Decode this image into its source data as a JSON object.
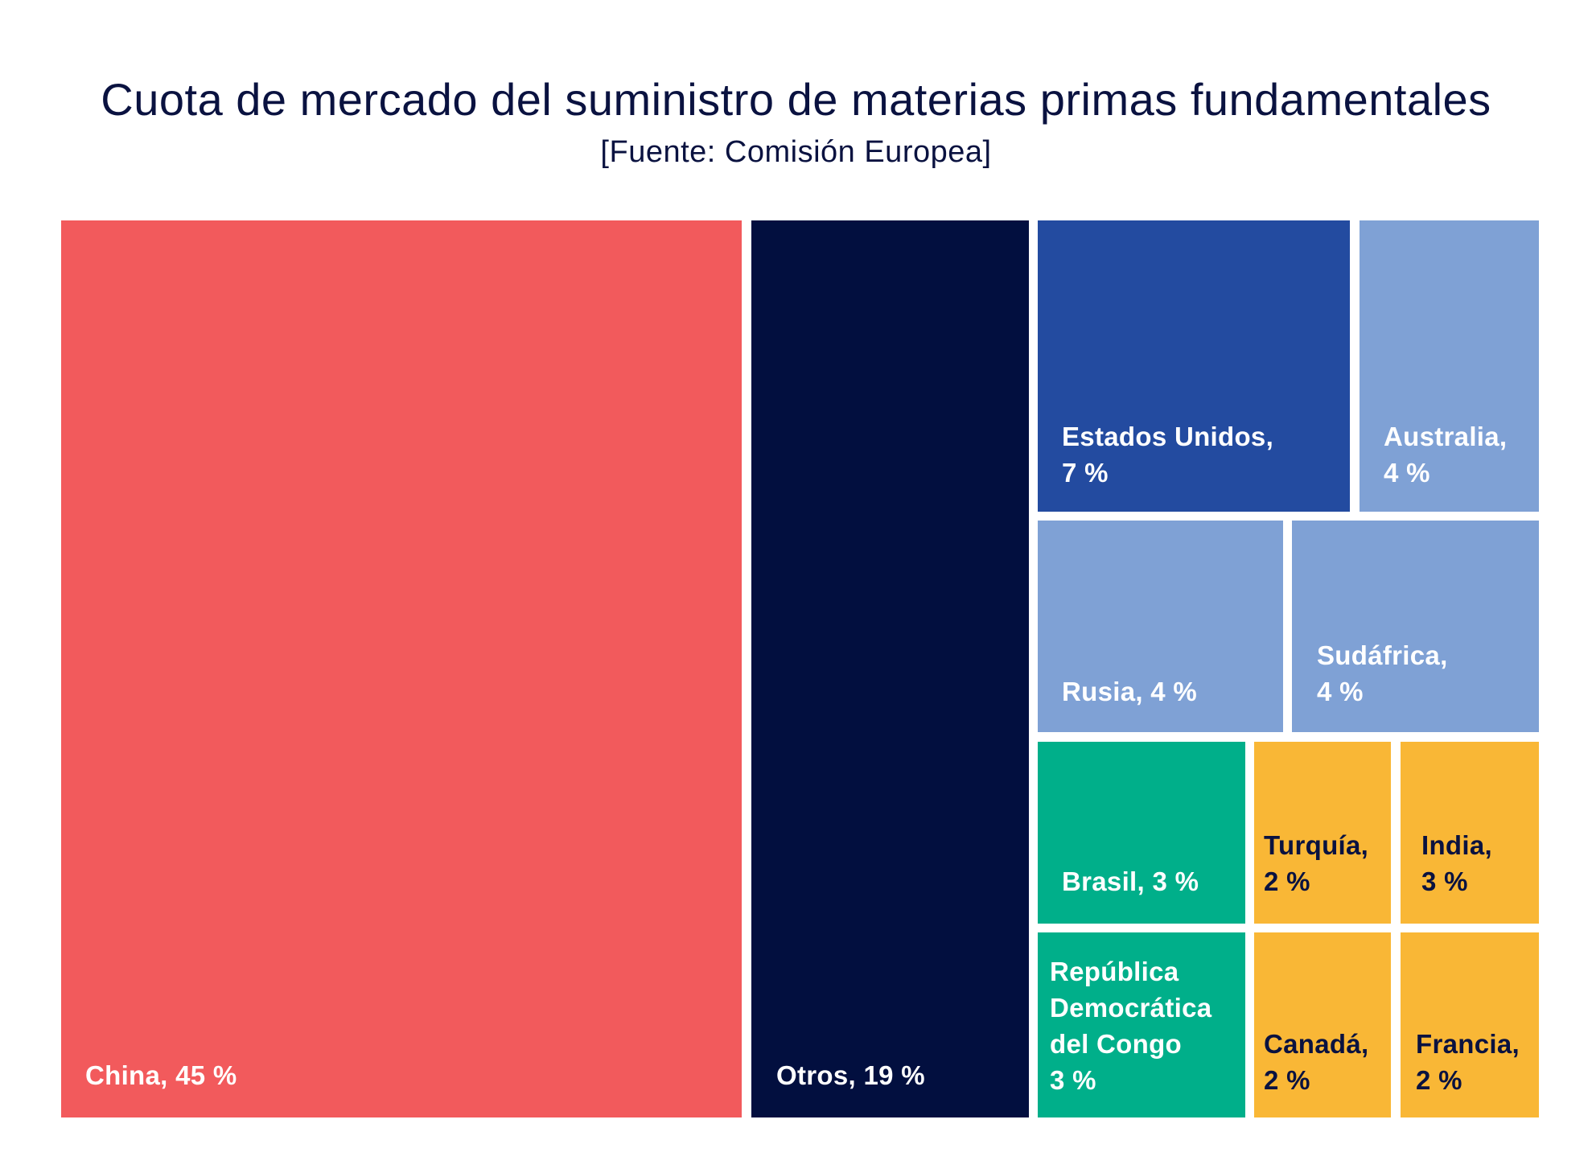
{
  "chart_data": {
    "type": "treemap",
    "title": "Cuota de mercado del suministro de materias primas fundamentales",
    "subtitle": "[Fuente: Comisión Europea]",
    "unit": "%",
    "items": [
      {
        "name": "China",
        "value": 45,
        "color": "#F25A5C",
        "label": "China, 45 %"
      },
      {
        "name": "Otros",
        "value": 19,
        "color": "#020F3F",
        "label": "Otros, 19 %"
      },
      {
        "name": "Estados Unidos",
        "value": 7,
        "color": "#234BA0",
        "label": "Estados Unidos,\n7 %"
      },
      {
        "name": "Australia",
        "value": 4,
        "color": "#7FA1D5",
        "label": "Australia,\n4 %"
      },
      {
        "name": "Rusia",
        "value": 4,
        "color": "#7FA1D5",
        "label": "Rusia, 4 %"
      },
      {
        "name": "Sudáfrica",
        "value": 4,
        "color": "#7FA1D5",
        "label": "Sudáfrica,\n4 %"
      },
      {
        "name": "Brasil",
        "value": 3,
        "color": "#00AF8A",
        "label": "Brasil, 3 %"
      },
      {
        "name": "Turquía",
        "value": 2,
        "color": "#F9B736",
        "label": "Turquía,\n2 %"
      },
      {
        "name": "India",
        "value": 3,
        "color": "#F9B736",
        "label": "India,\n3 %"
      },
      {
        "name": "República Democrática del Congo",
        "value": 3,
        "color": "#00AF8A",
        "label": "República\nDemocrática\ndel Congo\n3 %"
      },
      {
        "name": "Canadá",
        "value": 2,
        "color": "#F9B736",
        "label": "Canadá,\n2 %"
      },
      {
        "name": "Francia",
        "value": 2,
        "color": "#F9B736",
        "label": "Francia,\n2 %"
      }
    ]
  }
}
